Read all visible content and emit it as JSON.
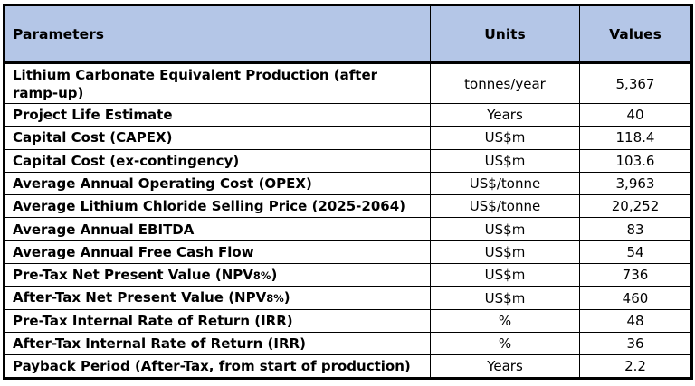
{
  "table": {
    "headers": {
      "parameters": "Parameters",
      "units": "Units",
      "values": "Values"
    },
    "rows": [
      {
        "parameter": "Lithium Carbonate Equivalent Production (after ramp-up)",
        "units": "tonnes/year",
        "value": "5,367"
      },
      {
        "parameter": "Project Life Estimate",
        "units": "Years",
        "value": "40"
      },
      {
        "parameter": "Capital Cost (CAPEX)",
        "units": "US$m",
        "value": "118.4"
      },
      {
        "parameter": "Capital Cost (ex-contingency)",
        "units": "US$m",
        "value": "103.6"
      },
      {
        "parameter": "Average Annual Operating Cost (OPEX)",
        "units": "US$/tonne",
        "value": "3,963"
      },
      {
        "parameter": "Average Lithium Chloride Selling Price (2025-2064)",
        "units": "US$/tonne",
        "value": "20,252"
      },
      {
        "parameter": "Average Annual EBITDA",
        "units": "US$m",
        "value": "83"
      },
      {
        "parameter": "Average Annual Free Cash Flow",
        "units": "US$m",
        "value": "54"
      },
      {
        "parameter_prefix": "Pre-Tax Net Present Value (NPV",
        "parameter_sub": "8%",
        "parameter_suffix": ")",
        "units": "US$m",
        "value": "736"
      },
      {
        "parameter_prefix": "After-Tax Net Present Value (NPV",
        "parameter_sub": "8%",
        "parameter_suffix": ")",
        "units": "US$m",
        "value": "460"
      },
      {
        "parameter": "Pre-Tax Internal Rate of Return (IRR)",
        "units": "%",
        "value": "48"
      },
      {
        "parameter": "After-Tax Internal Rate of Return (IRR)",
        "units": "%",
        "value": "36"
      },
      {
        "parameter": "Payback Period (After-Tax, from start of production)",
        "units": "Years",
        "value": "2.2"
      }
    ]
  },
  "colors": {
    "header_background": "#b4c6e7",
    "border": "#000000"
  }
}
